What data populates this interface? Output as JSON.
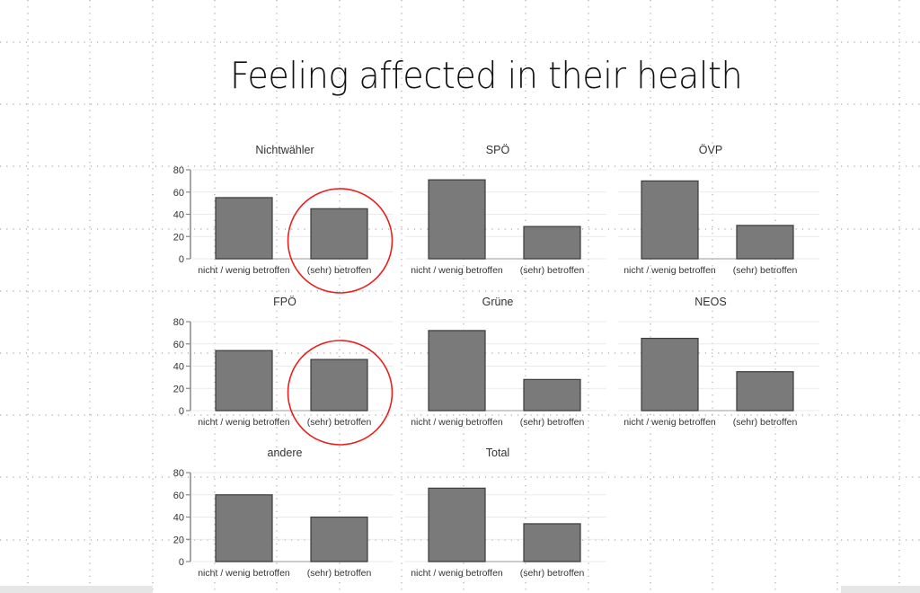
{
  "slide": {
    "title": "Feeling affected in their health",
    "grid_color": "#a8a8a8"
  },
  "chart_data": {
    "type": "bar",
    "title": "Feeling affected in their health",
    "xlabel": "",
    "ylabel": "",
    "ylim": [
      0,
      80
    ],
    "yticks": [
      0,
      20,
      40,
      60,
      80
    ],
    "categories": [
      "nicht / wenig betroffen",
      "(sehr) betroffen"
    ],
    "bar_color": "#7a7a7a",
    "bar_edge_color": "#3c3c3c",
    "grid": true,
    "panels": [
      {
        "name": "Nichtwähler",
        "values": [
          55,
          45
        ],
        "highlight": [
          false,
          true
        ]
      },
      {
        "name": "SPÖ",
        "values": [
          71,
          29
        ],
        "highlight": [
          false,
          false
        ]
      },
      {
        "name": "ÖVP",
        "values": [
          70,
          30
        ],
        "highlight": [
          false,
          false
        ]
      },
      {
        "name": "FPÖ",
        "values": [
          54,
          46
        ],
        "highlight": [
          false,
          true
        ]
      },
      {
        "name": "Grüne",
        "values": [
          72,
          28
        ],
        "highlight": [
          false,
          false
        ]
      },
      {
        "name": "NEOS",
        "values": [
          65,
          35
        ],
        "highlight": [
          false,
          false
        ]
      },
      {
        "name": "andere",
        "values": [
          60,
          40
        ],
        "highlight": [
          false,
          false
        ]
      },
      {
        "name": "Total",
        "values": [
          66,
          34
        ],
        "highlight": [
          false,
          false
        ]
      }
    ],
    "highlight_color": "#e8211f"
  }
}
